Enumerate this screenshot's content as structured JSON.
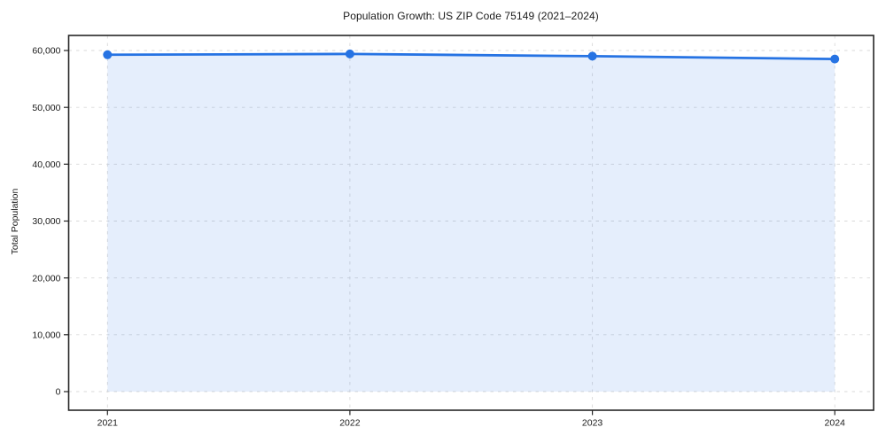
{
  "chart_data": {
    "type": "line",
    "title": "Population Growth: US ZIP Code 75149 (2021–2024)",
    "xlabel": "",
    "ylabel": "Total Population",
    "x": [
      2021,
      2022,
      2023,
      2024
    ],
    "x_tick_labels": [
      "2021",
      "2022",
      "2023",
      "2024"
    ],
    "series": [
      {
        "name": "Total Population",
        "values": [
          59250,
          59400,
          59000,
          58500
        ]
      }
    ],
    "yticks": [
      0,
      10000,
      20000,
      30000,
      40000,
      50000,
      60000
    ],
    "ytick_labels": [
      "0",
      "10,000",
      "20,000",
      "30,000",
      "40,000",
      "50,000",
      "60,000"
    ],
    "xlim": [
      2020.84,
      2024.16
    ],
    "ylim": [
      -3270,
      62650
    ],
    "grid": true,
    "grid_style": "dashed",
    "legend_position": "none",
    "area_fill": true,
    "marker": "circle",
    "style": {
      "line_color": "#2673e3",
      "marker_color": "#2673e3",
      "fill_color": "#2673e3",
      "fill_opacity": 0.12,
      "grid_color": "#d9d9d9",
      "spine_color": "#262626",
      "tick_color": "#262626",
      "text_color": "#1a1a1a",
      "background": "#ffffff"
    }
  }
}
